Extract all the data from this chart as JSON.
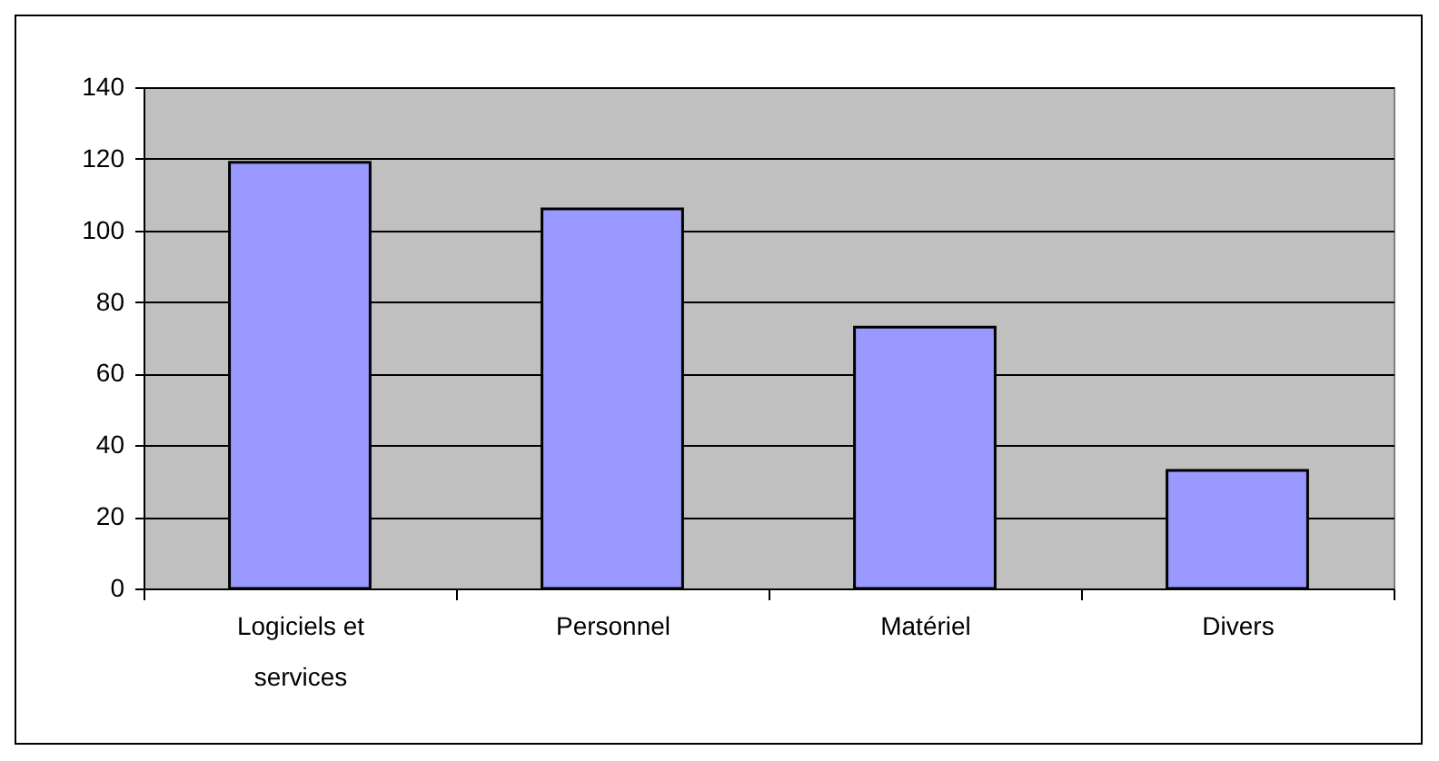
{
  "chart_data": {
    "type": "bar",
    "categories": [
      "Logiciels et services",
      "Personnel",
      "Matériel",
      "Divers"
    ],
    "values": [
      119,
      106,
      73,
      33
    ],
    "color": "#9999ff",
    "ylim": [
      0,
      140
    ],
    "yticks": [
      0,
      20,
      40,
      60,
      80,
      100,
      120,
      140
    ],
    "grid": "y"
  }
}
